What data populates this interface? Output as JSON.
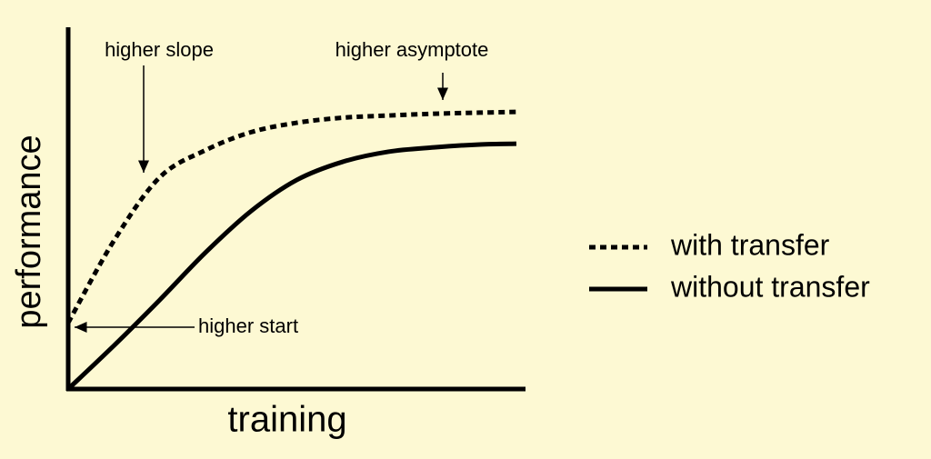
{
  "chart_data": {
    "type": "line",
    "x_label": "training",
    "y_label": "performance",
    "x": [
      0,
      10,
      20,
      30,
      40,
      50,
      60,
      70,
      80,
      90,
      98
    ],
    "xlim": [
      0,
      100
    ],
    "ylim": [
      0,
      100
    ],
    "series": [
      {
        "name": "with transfer",
        "color": "#000000",
        "line_style": "dotted",
        "values": [
          18.3,
          41,
          58.5,
          66,
          71,
          73.6,
          75,
          75.6,
          76.1,
          76.4,
          76.6
        ]
      },
      {
        "name": "without transfer",
        "color": "#000000",
        "line_style": "solid",
        "values": [
          0,
          12,
          24.6,
          37.7,
          49.2,
          57.8,
          62.8,
          65.6,
          66.8,
          67.6,
          67.8
        ]
      }
    ],
    "annotations": [
      {
        "text": "higher slope"
      },
      {
        "text": "higher asymptote"
      },
      {
        "text": "higher start"
      }
    ]
  }
}
